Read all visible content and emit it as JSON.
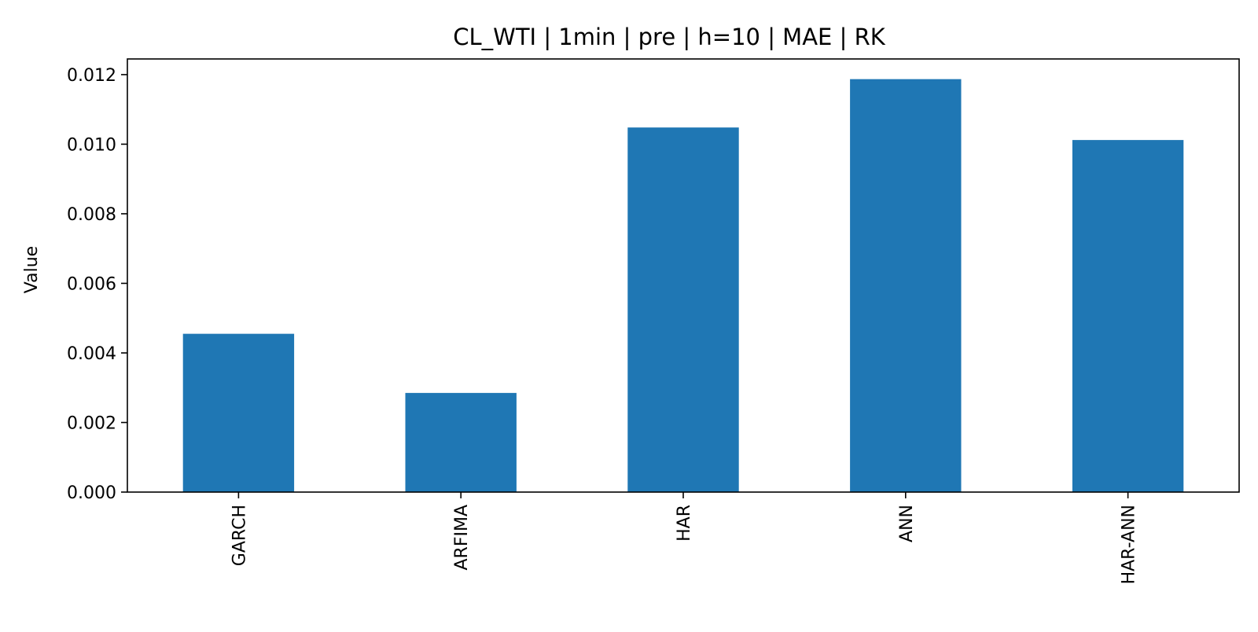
{
  "chart_data": {
    "type": "bar",
    "title": "CL_WTI | 1min | pre | h=10 | MAE | RK",
    "xlabel": "",
    "ylabel": "Value",
    "categories": [
      "GARCH",
      "ARFIMA",
      "HAR",
      "ANN",
      "HAR-ANN"
    ],
    "values": [
      0.00455,
      0.00285,
      0.01048,
      0.01187,
      0.01012
    ],
    "ylim": [
      0,
      0.01245
    ],
    "yticks": [
      "0.000",
      "0.002",
      "0.004",
      "0.006",
      "0.008",
      "0.010",
      "0.012"
    ],
    "ytick_values": [
      0,
      0.002,
      0.004,
      0.006,
      0.008,
      0.01,
      0.012
    ],
    "bar_color": "#1f77b4",
    "grid": false,
    "legend": "none"
  }
}
